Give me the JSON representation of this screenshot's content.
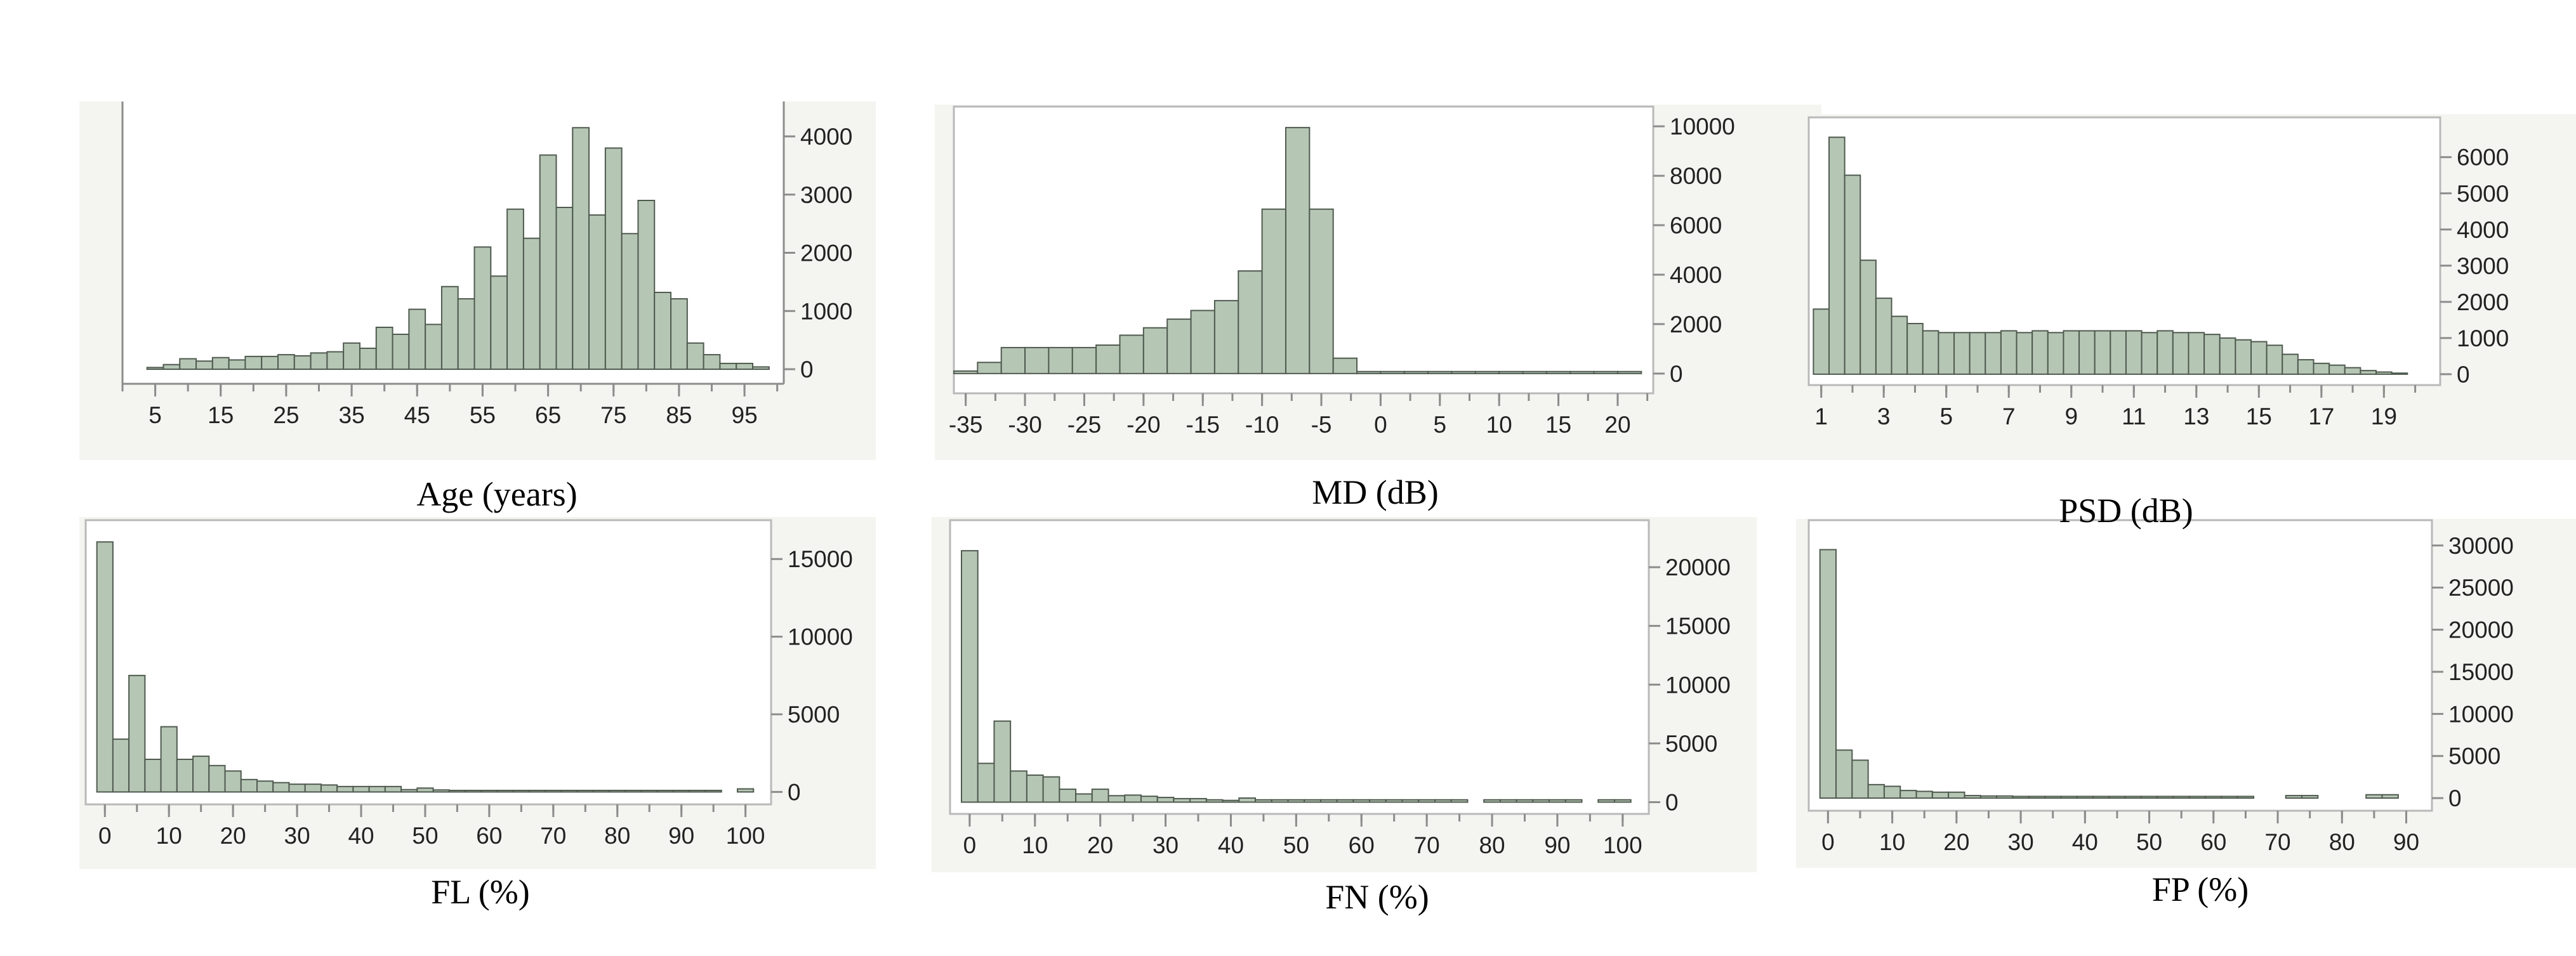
{
  "chart_data": [
    {
      "type": "bar",
      "title": "",
      "xlabel": "Age (years)",
      "ylabel": "",
      "xlim": [
        0,
        101
      ],
      "ylim": [
        -250,
        4600
      ],
      "bin_width": 2.5,
      "x": [
        5,
        7.5,
        10,
        12.5,
        15,
        17.5,
        20,
        22.5,
        25,
        27.5,
        30,
        32.5,
        35,
        37.5,
        40,
        42.5,
        45,
        47.5,
        50,
        52.5,
        55,
        57.5,
        60,
        62.5,
        65,
        67.5,
        70,
        72.5,
        75,
        77.5,
        80,
        82.5,
        85,
        87.5,
        90,
        92.5,
        95,
        97.5
      ],
      "values": [
        30,
        80,
        180,
        140,
        200,
        160,
        220,
        220,
        250,
        230,
        280,
        300,
        450,
        360,
        720,
        600,
        1030,
        770,
        1420,
        1210,
        2100,
        1600,
        2750,
        2250,
        3680,
        2780,
        4150,
        2650,
        3800,
        2330,
        2900,
        1320,
        1210,
        450,
        250,
        100,
        100,
        40
      ],
      "x_ticks": [
        "5",
        "15",
        "25",
        "35",
        "45",
        "55",
        "65",
        "75",
        "85",
        "95"
      ],
      "y_ticks": [
        "4000",
        "3000",
        "2000",
        "1000",
        "0"
      ]
    },
    {
      "type": "bar",
      "title": "",
      "xlabel": "MD (dB)",
      "ylabel": "",
      "xlim": [
        -36,
        23
      ],
      "ylim": [
        -800,
        10800
      ],
      "bin_width": 2,
      "x": [
        -35,
        -33,
        -31,
        -29,
        -27,
        -25,
        -23,
        -21,
        -19,
        -17,
        -15,
        -13,
        -11,
        -9,
        -7,
        -5,
        -3,
        -1,
        1,
        3,
        5,
        7,
        9,
        11,
        13,
        15,
        17,
        19,
        21
      ],
      "values": [
        100,
        450,
        1050,
        1050,
        1050,
        1050,
        1150,
        1550,
        1850,
        2200,
        2550,
        2950,
        4150,
        6650,
        9950,
        6650,
        620,
        80,
        80,
        80,
        80,
        80,
        80,
        80,
        80,
        80,
        80,
        80,
        80
      ],
      "x_ticks": [
        "-35",
        "-30",
        "-25",
        "-20",
        "-15",
        "-10",
        "-5",
        "0",
        "5",
        "10",
        "15",
        "20"
      ],
      "y_ticks": [
        "10000",
        "8000",
        "6000",
        "4000",
        "2000",
        "0"
      ]
    },
    {
      "type": "bar",
      "title": "",
      "xlabel": "PSD (dB)",
      "ylabel": "",
      "xlim": [
        0.6,
        20.8
      ],
      "ylim": [
        -300,
        7100
      ],
      "bin_width": 0.5,
      "x": [
        1,
        1.5,
        2,
        2.5,
        3,
        3.5,
        4,
        4.5,
        5,
        5.5,
        6,
        6.5,
        7,
        7.5,
        8,
        8.5,
        9,
        9.5,
        10,
        10.5,
        11,
        11.5,
        12,
        12.5,
        13,
        13.5,
        14,
        14.5,
        15,
        15.5,
        16,
        16.5,
        17,
        17.5,
        18,
        18.5,
        19,
        19.5
      ],
      "values": [
        1800,
        6550,
        5500,
        3150,
        2100,
        1600,
        1400,
        1200,
        1150,
        1150,
        1150,
        1150,
        1200,
        1150,
        1200,
        1150,
        1200,
        1200,
        1200,
        1200,
        1200,
        1150,
        1200,
        1150,
        1150,
        1100,
        1000,
        950,
        900,
        800,
        550,
        400,
        300,
        250,
        180,
        100,
        60,
        30
      ],
      "x_ticks": [
        "1",
        "3",
        "5",
        "7",
        "9",
        "11",
        "13",
        "15",
        "17",
        "19"
      ],
      "y_ticks": [
        "6000",
        "5000",
        "4000",
        "3000",
        "2000",
        "1000",
        "0"
      ]
    },
    {
      "type": "bar",
      "title": "",
      "xlabel": "FL (%)",
      "ylabel": "",
      "xlim": [
        -3,
        104
      ],
      "ylim": [
        -800,
        17500
      ],
      "bin_width": 2.5,
      "x": [
        0,
        2.5,
        5,
        7.5,
        10,
        12.5,
        15,
        17.5,
        20,
        22.5,
        25,
        27.5,
        30,
        32.5,
        35,
        37.5,
        40,
        42.5,
        45,
        47.5,
        50,
        52.5,
        55,
        57.5,
        60,
        62.5,
        65,
        67.5,
        70,
        72.5,
        75,
        77.5,
        80,
        82.5,
        85,
        87.5,
        90,
        92.5,
        95,
        100
      ],
      "values": [
        16100,
        3400,
        7500,
        2100,
        4200,
        2100,
        2300,
        1700,
        1350,
        800,
        700,
        600,
        500,
        500,
        450,
        350,
        350,
        350,
        350,
        150,
        250,
        130,
        100,
        100,
        100,
        100,
        100,
        100,
        100,
        100,
        100,
        100,
        100,
        100,
        100,
        100,
        100,
        100,
        100,
        200
      ],
      "x_ticks": [
        "0",
        "10",
        "20",
        "30",
        "40",
        "50",
        "60",
        "70",
        "80",
        "90",
        "100"
      ],
      "y_ticks": [
        "15000",
        "10000",
        "5000",
        "0"
      ]
    },
    {
      "type": "bar",
      "title": "",
      "xlabel": "FN (%)",
      "ylabel": "",
      "xlim": [
        -3,
        104
      ],
      "ylim": [
        -1000,
        24000
      ],
      "bin_width": 2.5,
      "x": [
        0,
        2.5,
        5,
        7.5,
        10,
        12.5,
        15,
        17.5,
        20,
        22.5,
        25,
        27.5,
        30,
        32.5,
        35,
        37.5,
        40,
        42.5,
        45,
        47.5,
        50,
        52.5,
        55,
        57.5,
        60,
        62.5,
        65,
        67.5,
        70,
        72.5,
        75,
        80,
        82.5,
        85,
        87.5,
        90,
        92.5,
        97.5,
        100
      ],
      "values": [
        21400,
        3300,
        6900,
        2650,
        2300,
        2150,
        1100,
        700,
        1100,
        550,
        600,
        500,
        400,
        300,
        300,
        200,
        150,
        350,
        200,
        200,
        200,
        200,
        200,
        200,
        200,
        200,
        200,
        200,
        200,
        200,
        200,
        200,
        200,
        200,
        200,
        200,
        200,
        200,
        200
      ],
      "x_ticks": [
        "0",
        "10",
        "20",
        "30",
        "40",
        "50",
        "60",
        "70",
        "80",
        "90",
        "100"
      ],
      "y_ticks": [
        "20000",
        "15000",
        "10000",
        "5000",
        "0"
      ]
    },
    {
      "type": "bar",
      "title": "",
      "xlabel": "FP (%)",
      "ylabel": "",
      "xlim": [
        -3,
        94
      ],
      "ylim": [
        -1500,
        33000
      ],
      "bin_width": 2.5,
      "x": [
        0,
        2.5,
        5,
        7.5,
        10,
        12.5,
        15,
        17.5,
        20,
        22.5,
        25,
        27.5,
        30,
        32.5,
        35,
        37.5,
        40,
        42.5,
        45,
        47.5,
        50,
        52.5,
        55,
        57.5,
        60,
        62.5,
        65,
        72.5,
        75,
        85,
        87.5
      ],
      "values": [
        29500,
        5700,
        4500,
        1600,
        1400,
        900,
        800,
        700,
        700,
        300,
        250,
        250,
        200,
        200,
        200,
        200,
        200,
        200,
        200,
        200,
        200,
        200,
        200,
        200,
        200,
        200,
        200,
        300,
        300,
        400,
        400
      ],
      "x_ticks": [
        "0",
        "10",
        "20",
        "30",
        "40",
        "50",
        "60",
        "70",
        "80",
        "90"
      ],
      "y_ticks": [
        "30000",
        "25000",
        "20000",
        "15000",
        "10000",
        "5000",
        "0"
      ]
    }
  ]
}
